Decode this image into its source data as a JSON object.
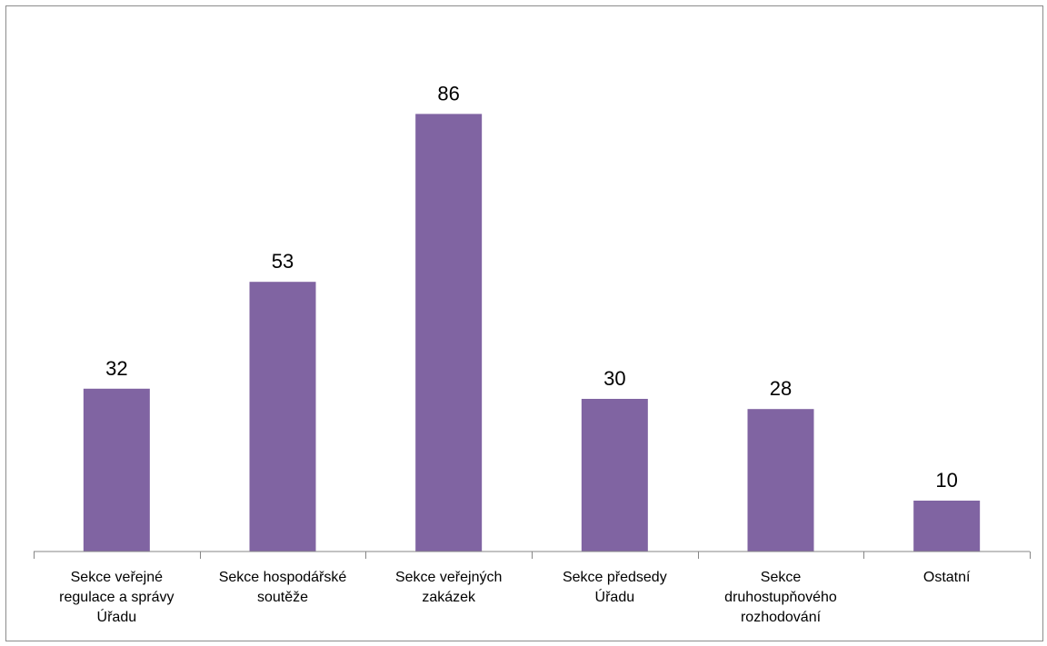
{
  "chart_data": {
    "type": "bar",
    "categories": [
      [
        "Sekce veřejné",
        "regulace a správy",
        "Úřadu"
      ],
      [
        "Sekce hospodářské",
        "soutěže"
      ],
      [
        "Sekce veřejných",
        "zakázek"
      ],
      [
        "Sekce předsedy",
        "Úřadu"
      ],
      [
        "Sekce",
        "druhostupňového",
        "rozhodování"
      ],
      [
        "Ostatní"
      ]
    ],
    "values": [
      32,
      53,
      86,
      30,
      28,
      10
    ],
    "data_labels": [
      "32",
      "53",
      "86",
      "30",
      "28",
      "10"
    ],
    "title": "",
    "xlabel": "",
    "ylabel": "",
    "ylim": [
      0,
      90
    ],
    "grid": false,
    "legend": "none",
    "bar_color": "#8064a2",
    "axis_color": "#868686"
  }
}
